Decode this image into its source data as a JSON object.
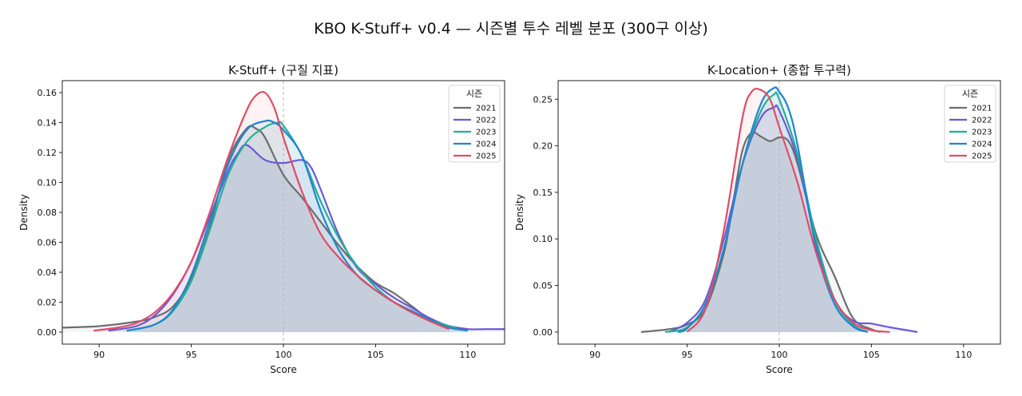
{
  "page": {
    "suptitle": "KBO K-Stuff+ v0.4 — 시즌별 투수 레벨 분포 (300구 이상)"
  },
  "chart_data": [
    {
      "type": "area",
      "title": "K-Stuff+ (구질 지표)",
      "xlabel": "Score",
      "ylabel": "Density",
      "xlim": [
        88,
        112
      ],
      "ylim": [
        -0.008,
        0.168
      ],
      "xticks": [
        90,
        95,
        100,
        105,
        110
      ],
      "yticks": [
        0.0,
        0.02,
        0.04,
        0.06,
        0.08,
        0.1,
        0.12,
        0.14,
        0.16
      ],
      "ytick_labels": [
        "0.00",
        "0.02",
        "0.04",
        "0.06",
        "0.08",
        "0.10",
        "0.12",
        "0.14",
        "0.16"
      ],
      "reference_line_x": 100,
      "fill_color": "#c5cedb",
      "legend": {
        "title": "시즌",
        "position": "upper right"
      },
      "series": [
        {
          "name": "2021",
          "color": "#6b6f70",
          "x": [
            88,
            90,
            92,
            93,
            94,
            95,
            96,
            97,
            98,
            98.5,
            99,
            100,
            101,
            102,
            103,
            104,
            105,
            106,
            107,
            108,
            109,
            110
          ],
          "y": [
            0.003,
            0.004,
            0.007,
            0.01,
            0.017,
            0.036,
            0.07,
            0.115,
            0.136,
            0.136,
            0.13,
            0.105,
            0.09,
            0.074,
            0.058,
            0.044,
            0.033,
            0.026,
            0.017,
            0.008,
            0.004,
            0.002
          ]
        },
        {
          "name": "2022",
          "color": "#6a5ad6",
          "x": [
            90.5,
            92,
            93,
            94,
            95,
            96,
            97,
            97.5,
            98,
            99,
            100,
            101,
            101.5,
            102,
            103,
            104,
            105,
            106,
            107,
            108,
            109,
            110,
            111,
            112
          ],
          "y": [
            0.001,
            0.004,
            0.011,
            0.025,
            0.047,
            0.077,
            0.108,
            0.119,
            0.125,
            0.115,
            0.113,
            0.115,
            0.11,
            0.096,
            0.065,
            0.043,
            0.032,
            0.023,
            0.016,
            0.009,
            0.004,
            0.002,
            0.002,
            0.002
          ]
        },
        {
          "name": "2023",
          "color": "#22b09a",
          "x": [
            91.5,
            93,
            94,
            95,
            96,
            97,
            98,
            99,
            99.7,
            100,
            101,
            102,
            103,
            104,
            105,
            106,
            107,
            108,
            109,
            109.5
          ],
          "y": [
            0.001,
            0.005,
            0.014,
            0.034,
            0.068,
            0.105,
            0.127,
            0.137,
            0.14,
            0.138,
            0.118,
            0.088,
            0.063,
            0.044,
            0.03,
            0.02,
            0.013,
            0.008,
            0.004,
            0.002
          ]
        },
        {
          "name": "2024",
          "color": "#1f86cc",
          "x": [
            91.5,
            93,
            94,
            95,
            96,
            97,
            98,
            99,
            99.5,
            100,
            101,
            102,
            103,
            104,
            105,
            106,
            107,
            108,
            109,
            110
          ],
          "y": [
            0.001,
            0.005,
            0.015,
            0.038,
            0.074,
            0.112,
            0.135,
            0.141,
            0.14,
            0.135,
            0.118,
            0.082,
            0.055,
            0.038,
            0.028,
            0.02,
            0.014,
            0.008,
            0.003,
            0.001
          ]
        },
        {
          "name": "2025",
          "color": "#e04c67",
          "x": [
            89.7,
            91,
            92,
            93,
            94,
            95,
            96,
            97,
            98,
            98.5,
            99,
            99.5,
            100,
            101,
            102,
            103,
            104,
            105,
            106,
            107,
            108,
            109
          ],
          "y": [
            0.001,
            0.003,
            0.006,
            0.013,
            0.026,
            0.047,
            0.08,
            0.117,
            0.148,
            0.158,
            0.16,
            0.15,
            0.13,
            0.094,
            0.066,
            0.05,
            0.038,
            0.028,
            0.02,
            0.013,
            0.007,
            0.002
          ]
        }
      ]
    },
    {
      "type": "area",
      "title": "K-Location+ (종합 투구력)",
      "xlabel": "Score",
      "ylabel": "Density",
      "xlim": [
        88,
        112
      ],
      "ylim": [
        -0.013,
        0.27
      ],
      "xticks": [
        90,
        95,
        100,
        105,
        110
      ],
      "yticks": [
        0.0,
        0.05,
        0.1,
        0.15,
        0.2,
        0.25
      ],
      "ytick_labels": [
        "0.00",
        "0.05",
        "0.10",
        "0.15",
        "0.20",
        "0.25"
      ],
      "reference_line_x": 100,
      "fill_color": "#c5cedb",
      "legend": {
        "title": "시즌",
        "position": "upper right"
      },
      "series": [
        {
          "name": "2021",
          "color": "#6b6f70",
          "x": [
            92.5,
            94,
            95,
            96,
            97,
            97.5,
            98,
            98.5,
            99,
            99.5,
            100,
            100.5,
            101,
            102,
            103,
            104,
            105,
            105.5
          ],
          "y": [
            0.0,
            0.003,
            0.008,
            0.025,
            0.085,
            0.14,
            0.195,
            0.214,
            0.21,
            0.205,
            0.209,
            0.205,
            0.18,
            0.105,
            0.06,
            0.015,
            0.003,
            0.0
          ]
        },
        {
          "name": "2022",
          "color": "#6a5ad6",
          "x": [
            94,
            95,
            96,
            97,
            98,
            99,
            99.7,
            100,
            101,
            102,
            103,
            104,
            105,
            106,
            107.5
          ],
          "y": [
            0.0,
            0.01,
            0.035,
            0.1,
            0.18,
            0.23,
            0.241,
            0.238,
            0.185,
            0.095,
            0.035,
            0.012,
            0.009,
            0.005,
            0.0
          ]
        },
        {
          "name": "2023",
          "color": "#22b09a",
          "x": [
            93.8,
            95,
            96,
            97,
            98,
            99,
            99.7,
            100,
            101,
            102,
            103,
            104,
            104.8
          ],
          "y": [
            0.0,
            0.005,
            0.03,
            0.09,
            0.18,
            0.237,
            0.255,
            0.25,
            0.19,
            0.1,
            0.035,
            0.008,
            0.0
          ]
        },
        {
          "name": "2024",
          "color": "#1f86cc",
          "x": [
            94.5,
            95,
            96,
            97,
            98,
            99,
            99.7,
            100,
            100.5,
            101,
            102,
            103,
            104,
            104.8
          ],
          "y": [
            0.0,
            0.004,
            0.03,
            0.09,
            0.18,
            0.245,
            0.262,
            0.258,
            0.24,
            0.2,
            0.09,
            0.03,
            0.006,
            0.0
          ]
        },
        {
          "name": "2025",
          "color": "#e04c67",
          "x": [
            95,
            96,
            97,
            98,
            98.5,
            99,
            99.5,
            100,
            101,
            102,
            103,
            104,
            105,
            106
          ],
          "y": [
            0.0,
            0.025,
            0.11,
            0.23,
            0.258,
            0.26,
            0.25,
            0.22,
            0.16,
            0.085,
            0.035,
            0.01,
            0.002,
            0.0
          ]
        }
      ]
    }
  ]
}
